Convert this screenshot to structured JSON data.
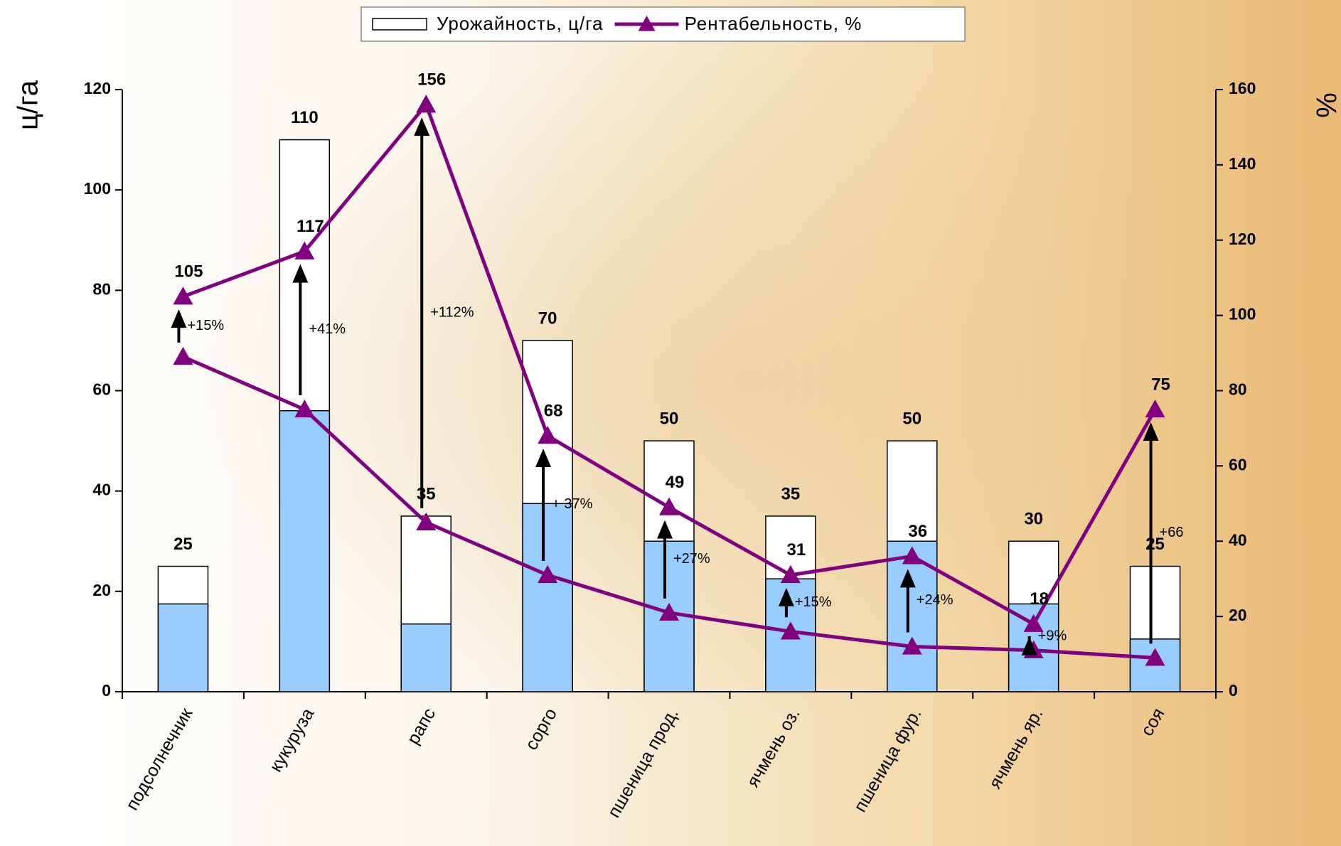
{
  "chart_data": {
    "type": "bar_line",
    "categories": [
      "подсолнечник",
      "кукуруза",
      "рапс",
      "сорго",
      "пшеница прод.",
      "ячмень оз.",
      "пшеница фур.",
      "ячмень яр.",
      "соя"
    ],
    "series": [
      {
        "name": "Урожайность, ц/га",
        "type": "bar",
        "color": "#ffffff",
        "show_labels": true,
        "values": [
          25,
          110,
          35,
          70,
          50,
          35,
          50,
          30,
          25
        ]
      },
      {
        "type": "bar",
        "color": "#99ccff",
        "show_labels": false,
        "values": [
          17.5,
          56,
          13.5,
          37.5,
          30,
          22.5,
          30,
          17.5,
          10.5
        ]
      },
      {
        "name": "Рентабельность, %",
        "type": "line",
        "axis": "y2",
        "color": "#800080",
        "show_labels": true,
        "values": [
          105,
          117,
          156,
          68,
          49,
          31,
          36,
          18,
          75
        ]
      },
      {
        "type": "line",
        "axis": "y2",
        "color": "#800080",
        "show_labels": false,
        "values": [
          89,
          75,
          45,
          31,
          21,
          16,
          12,
          11,
          9
        ]
      }
    ],
    "annotations": [
      "+15%",
      "+41%",
      "+112%",
      "+ 37%",
      "+27%",
      "+15%",
      "+24%",
      "+9%",
      "+66"
    ],
    "ylabel": "ц/га",
    "y2label": "%",
    "ylim": [
      0,
      120
    ],
    "yticks": [
      0,
      20,
      40,
      60,
      80,
      100,
      120
    ],
    "y2lim": [
      0,
      160
    ],
    "y2ticks": [
      0,
      20,
      40,
      60,
      80,
      100,
      120,
      140,
      160
    ],
    "legend": "top"
  }
}
